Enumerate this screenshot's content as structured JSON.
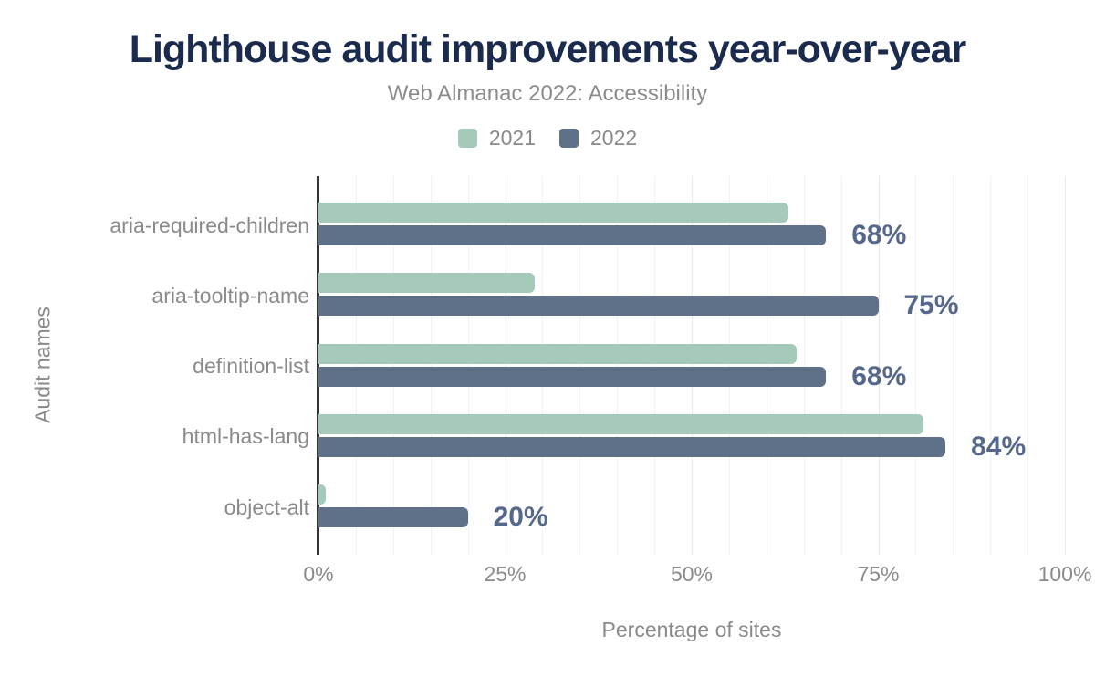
{
  "chart_data": {
    "type": "bar",
    "orientation": "horizontal",
    "title": "Lighthouse audit improvements year-over-year",
    "subtitle": "Web Almanac 2022: Accessibility",
    "categories": [
      "aria-required-children",
      "aria-tooltip-name",
      "definition-list",
      "html-has-lang",
      "object-alt"
    ],
    "series": [
      {
        "name": "2021",
        "color": "#a6caba",
        "values": [
          63,
          29,
          64,
          81,
          1
        ]
      },
      {
        "name": "2022",
        "color": "#5f7089",
        "values": [
          68,
          75,
          68,
          84,
          20
        ],
        "data_labels": [
          "68%",
          "75%",
          "68%",
          "84%",
          "20%"
        ]
      }
    ],
    "xlabel": "Percentage of sites",
    "ylabel": "Audit names",
    "xlim": [
      0,
      100
    ],
    "xticks": [
      0,
      25,
      50,
      75,
      100
    ],
    "xtick_labels": [
      "0%",
      "25%",
      "50%",
      "75%",
      "100%"
    ],
    "grid": {
      "axis": "x",
      "minor_step": 5,
      "major_step": 25
    },
    "legend_position": "top"
  },
  "colors": {
    "title": "#1b2b4d",
    "muted_text": "#8a8a8a",
    "value_label": "#55688c",
    "axis_line": "#333333",
    "gridline_minor": "#f2f2f2",
    "gridline_major": "#e9e9e9",
    "background": "#ffffff",
    "series_2021": "#a6caba",
    "series_2022": "#5f7089"
  }
}
